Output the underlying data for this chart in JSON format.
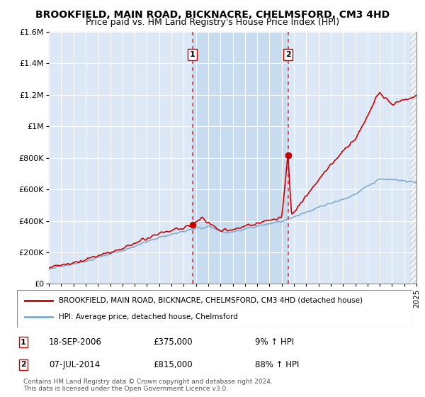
{
  "title": "BROOKFIELD, MAIN ROAD, BICKNACRE, CHELMSFORD, CM3 4HD",
  "subtitle": "Price paid vs. HM Land Registry's House Price Index (HPI)",
  "title_fontsize": 10,
  "subtitle_fontsize": 9,
  "ylim": [
    0,
    1600000
  ],
  "yticks": [
    0,
    200000,
    400000,
    600000,
    800000,
    1000000,
    1200000,
    1400000,
    1600000
  ],
  "ytick_labels": [
    "£0",
    "£200K",
    "£400K",
    "£600K",
    "£800K",
    "£1M",
    "£1.2M",
    "£1.4M",
    "£1.6M"
  ],
  "x_start_year": 1995,
  "x_end_year": 2025,
  "background_color": "#ffffff",
  "plot_bg_color": "#dce8f5",
  "plot_bg_color_between": "#c8dcf0",
  "grid_color": "#ffffff",
  "hpi_line_color": "#7faacc",
  "property_line_color": "#cc0000",
  "vline_color": "#ee3333",
  "sale1_year": 2006.72,
  "sale1_price": 375000,
  "sale1_label": "1",
  "sale2_year": 2014.51,
  "sale2_price": 815000,
  "sale2_label": "2",
  "legend_line1": "BROOKFIELD, MAIN ROAD, BICKNACRE, CHELMSFORD, CM3 4HD (detached house)",
  "legend_line2": "HPI: Average price, detached house, Chelmsford",
  "annotation1_date": "18-SEP-2006",
  "annotation1_price": "£375,000",
  "annotation1_hpi": "9% ↑ HPI",
  "annotation2_date": "07-JUL-2014",
  "annotation2_price": "£815,000",
  "annotation2_hpi": "88% ↑ HPI",
  "footer": "Contains HM Land Registry data © Crown copyright and database right 2024.\nThis data is licensed under the Open Government Licence v3.0."
}
